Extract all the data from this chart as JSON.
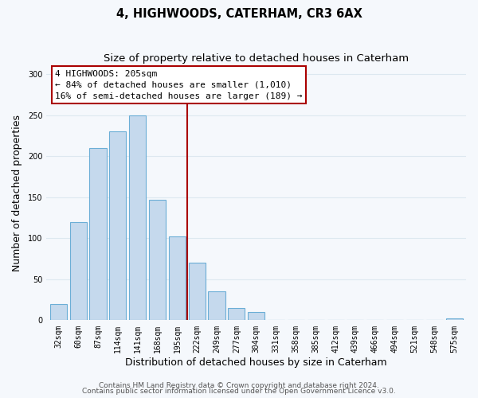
{
  "title": "4, HIGHWOODS, CATERHAM, CR3 6AX",
  "subtitle": "Size of property relative to detached houses in Caterham",
  "xlabel": "Distribution of detached houses by size in Caterham",
  "ylabel": "Number of detached properties",
  "bar_labels": [
    "32sqm",
    "60sqm",
    "87sqm",
    "114sqm",
    "141sqm",
    "168sqm",
    "195sqm",
    "222sqm",
    "249sqm",
    "277sqm",
    "304sqm",
    "331sqm",
    "358sqm",
    "385sqm",
    "412sqm",
    "439sqm",
    "466sqm",
    "494sqm",
    "521sqm",
    "548sqm",
    "575sqm"
  ],
  "bar_values": [
    20,
    120,
    210,
    230,
    250,
    147,
    102,
    70,
    35,
    15,
    10,
    0,
    0,
    0,
    0,
    0,
    0,
    0,
    0,
    0,
    2
  ],
  "bar_color": "#c5d9ed",
  "bar_edge_color": "#6baed6",
  "vline_x": 6.5,
  "annotation_line1": "4 HIGHWOODS: 205sqm",
  "annotation_line2": "← 84% of detached houses are smaller (1,010)",
  "annotation_line3": "16% of semi-detached houses are larger (189) →",
  "annotation_box_color": "#ffffff",
  "annotation_box_edge": "#aa0000",
  "vline_color": "#aa0000",
  "ylim": [
    0,
    310
  ],
  "yticks": [
    0,
    50,
    100,
    150,
    200,
    250,
    300
  ],
  "footer1": "Contains HM Land Registry data © Crown copyright and database right 2024.",
  "footer2": "Contains public sector information licensed under the Open Government Licence v3.0.",
  "bg_color": "#f5f8fc",
  "plot_bg_color": "#f5f8fc",
  "grid_color": "#dde8f0",
  "title_fontsize": 10.5,
  "subtitle_fontsize": 9.5,
  "axis_label_fontsize": 9,
  "tick_fontsize": 7,
  "annotation_fontsize": 8,
  "footer_fontsize": 6.5
}
